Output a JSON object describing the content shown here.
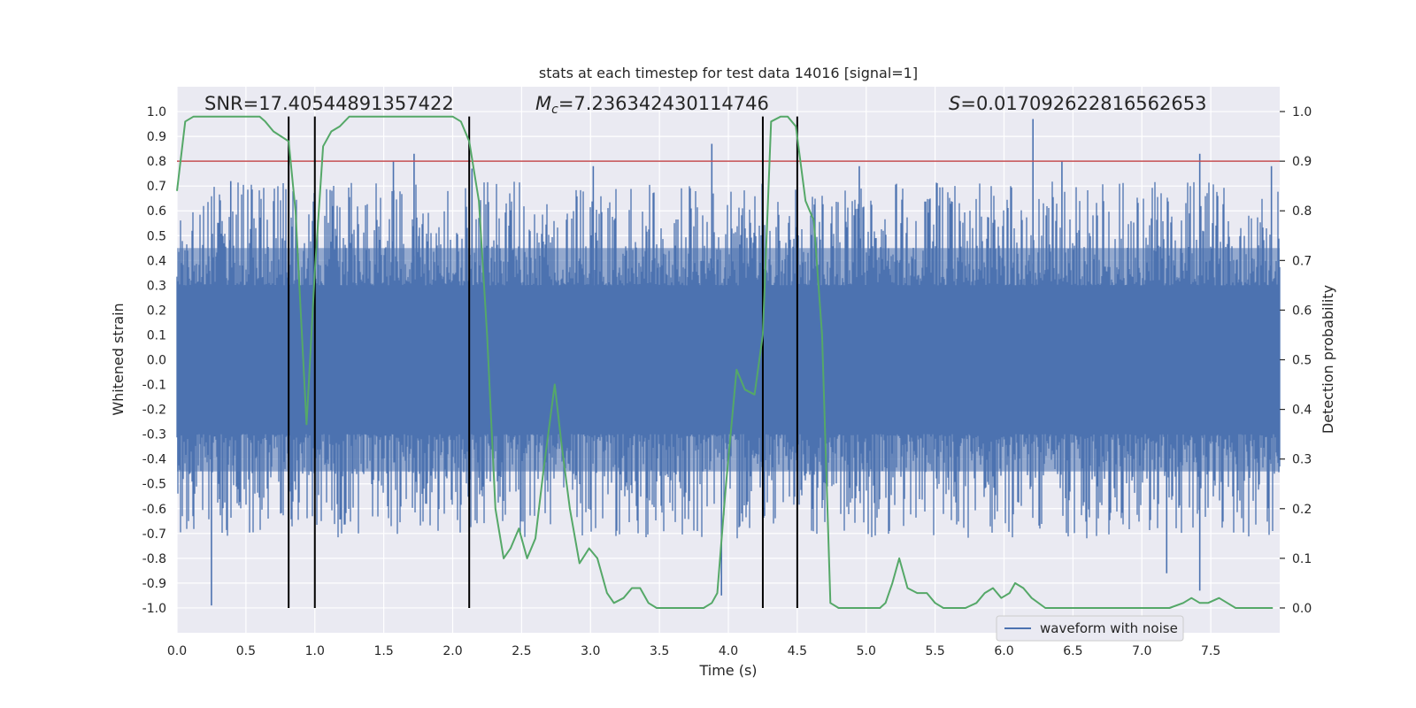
{
  "chart_data": {
    "type": "line",
    "title": "stats at each timestep for test data 14016 [signal=1]",
    "xlabel": "Time (s)",
    "ylabel_left": "Whitened strain",
    "ylabel_right": "Detection probability",
    "xlim": [
      0.0,
      8.0
    ],
    "ylim_left": [
      -1.1,
      1.1
    ],
    "ylim_right": [
      -0.05,
      1.05
    ],
    "xticks": [
      "0.0",
      "0.5",
      "1.0",
      "1.5",
      "2.0",
      "2.5",
      "3.0",
      "3.5",
      "4.0",
      "4.5",
      "5.0",
      "5.5",
      "6.0",
      "6.5",
      "7.0",
      "7.5"
    ],
    "yticks_left": [
      "1.0",
      "0.9",
      "0.8",
      "0.7",
      "0.6",
      "0.5",
      "0.4",
      "0.3",
      "0.2",
      "0.1",
      "0.0",
      "-0.1",
      "-0.2",
      "-0.3",
      "-0.4",
      "-0.5",
      "-0.6",
      "-0.7",
      "-0.8",
      "-0.9",
      "-1.0"
    ],
    "yticks_right": [
      "1.0",
      "0.9",
      "0.8",
      "0.7",
      "0.6",
      "0.5",
      "0.4",
      "0.3",
      "0.2",
      "0.1",
      "0.0"
    ],
    "annotations": {
      "snr": "SNR=17.40544891357422",
      "mc_symbol": "M",
      "mc_sub": "c",
      "mc_value": "=7.236342430114746",
      "s_symbol": "S",
      "s_value": "=0.017092622816562653"
    },
    "legend": {
      "label": "waveform with noise",
      "placement": "lower-right"
    },
    "threshold_right": 0.9,
    "vertical_lines_x": [
      0.81,
      1.0,
      2.12,
      4.25,
      4.5
    ],
    "waveform": {
      "name": "waveform with noise",
      "dense_band": [
        -0.25,
        0.25
      ],
      "mid_band": [
        -0.45,
        0.45
      ],
      "spike_peaks": [
        {
          "x": 0.25,
          "y": -0.99
        },
        {
          "x": 0.39,
          "y": 0.72
        },
        {
          "x": 1.57,
          "y": 0.8
        },
        {
          "x": 1.72,
          "y": 0.83
        },
        {
          "x": 2.14,
          "y": 0.77
        },
        {
          "x": 3.02,
          "y": 0.78
        },
        {
          "x": 3.88,
          "y": 0.87
        },
        {
          "x": 3.95,
          "y": -0.95
        },
        {
          "x": 4.95,
          "y": 0.78
        },
        {
          "x": 6.21,
          "y": 0.97
        },
        {
          "x": 6.42,
          "y": 0.8
        },
        {
          "x": 7.18,
          "y": -0.86
        },
        {
          "x": 7.42,
          "y": 0.83
        },
        {
          "x": 7.42,
          "y": -0.93
        },
        {
          "x": 7.94,
          "y": 0.78
        }
      ]
    },
    "detection_probability": {
      "name": "detection probability",
      "x": [
        0.0,
        0.06,
        0.12,
        0.2,
        0.3,
        0.4,
        0.5,
        0.6,
        0.64,
        0.7,
        0.81,
        0.86,
        0.94,
        1.0,
        1.06,
        1.12,
        1.18,
        1.25,
        1.32,
        1.4,
        1.5,
        1.6,
        1.7,
        1.8,
        1.9,
        2.0,
        2.06,
        2.12,
        2.19,
        2.25,
        2.31,
        2.37,
        2.42,
        2.48,
        2.54,
        2.6,
        2.66,
        2.74,
        2.79,
        2.85,
        2.92,
        2.99,
        3.05,
        3.12,
        3.17,
        3.24,
        3.3,
        3.36,
        3.42,
        3.48,
        3.56,
        3.66,
        3.74,
        3.82,
        3.88,
        3.92,
        3.98,
        4.06,
        4.12,
        4.19,
        4.25,
        4.31,
        4.38,
        4.43,
        4.49,
        4.56,
        4.62,
        4.68,
        4.74,
        4.8,
        4.9,
        5.0,
        5.1,
        5.14,
        5.19,
        5.24,
        5.3,
        5.37,
        5.44,
        5.5,
        5.56,
        5.64,
        5.72,
        5.8,
        5.86,
        5.92,
        5.98,
        6.04,
        6.08,
        6.14,
        6.2,
        6.3,
        6.4,
        6.5,
        6.6,
        6.7,
        6.8,
        6.9,
        7.0,
        7.1,
        7.2,
        7.3,
        7.36,
        7.42,
        7.48,
        7.56,
        7.62,
        7.68,
        7.74,
        7.82,
        7.9,
        7.95
      ],
      "y": [
        0.84,
        0.98,
        0.99,
        0.99,
        0.99,
        0.99,
        0.99,
        0.99,
        0.98,
        0.96,
        0.94,
        0.8,
        0.37,
        0.68,
        0.93,
        0.96,
        0.97,
        0.99,
        0.99,
        0.99,
        0.99,
        0.99,
        0.99,
        0.99,
        0.99,
        0.99,
        0.98,
        0.94,
        0.82,
        0.55,
        0.2,
        0.1,
        0.12,
        0.16,
        0.1,
        0.14,
        0.28,
        0.45,
        0.33,
        0.2,
        0.09,
        0.12,
        0.1,
        0.03,
        0.01,
        0.02,
        0.04,
        0.04,
        0.01,
        0.0,
        0.0,
        0.0,
        0.0,
        0.0,
        0.01,
        0.03,
        0.24,
        0.48,
        0.44,
        0.43,
        0.55,
        0.98,
        0.99,
        0.99,
        0.97,
        0.82,
        0.78,
        0.55,
        0.01,
        0.0,
        0.0,
        0.0,
        0.0,
        0.01,
        0.05,
        0.1,
        0.04,
        0.03,
        0.03,
        0.01,
        0.0,
        0.0,
        0.0,
        0.01,
        0.03,
        0.04,
        0.02,
        0.03,
        0.05,
        0.04,
        0.02,
        0.0,
        0.0,
        0.0,
        0.0,
        0.0,
        0.0,
        0.0,
        0.0,
        0.0,
        0.0,
        0.01,
        0.02,
        0.01,
        0.01,
        0.02,
        0.01,
        0.0,
        0.0,
        0.0,
        0.0,
        0.0
      ]
    },
    "colors": {
      "plot_bg": "#EAEAF2",
      "grid": "#FFFFFF",
      "waveform": "#4C72B0",
      "probability": "#55A868",
      "threshold": "#C44E52",
      "vlines": "#000000",
      "text": "#262626"
    }
  }
}
